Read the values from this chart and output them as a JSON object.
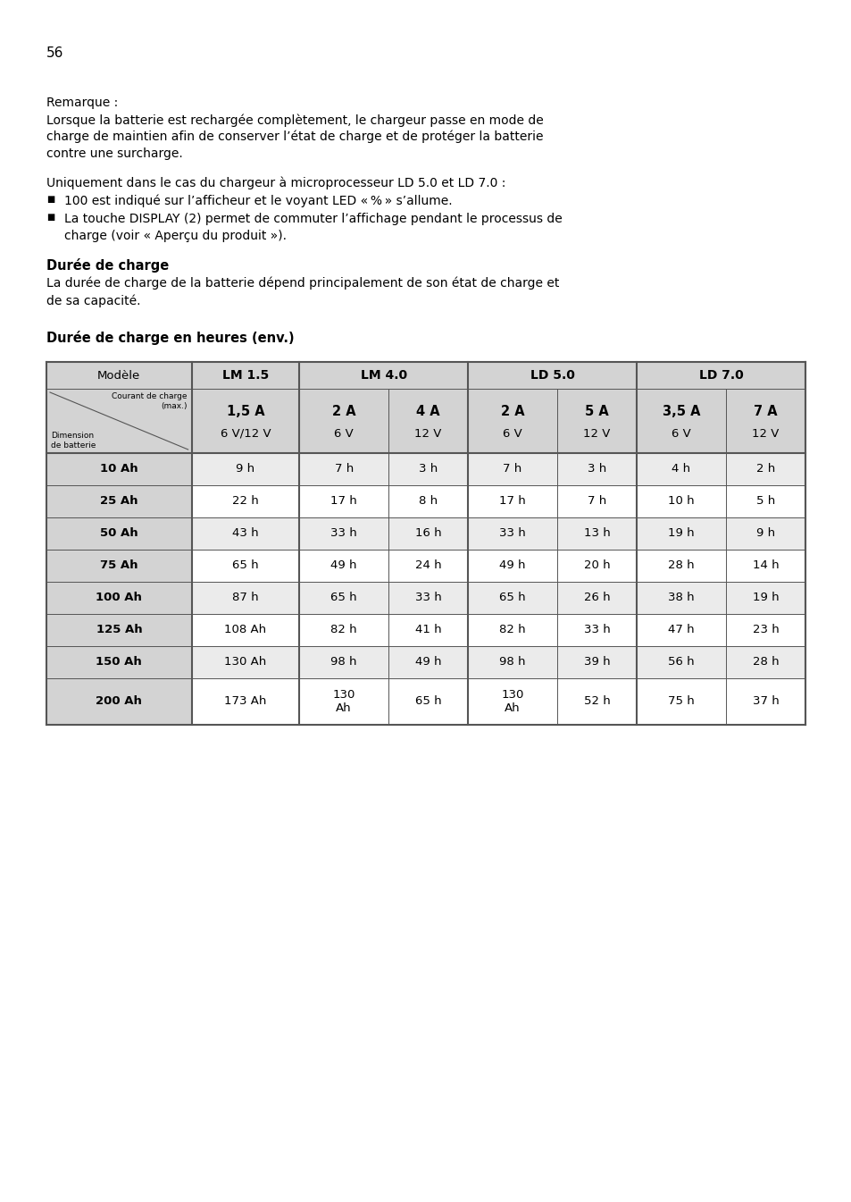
{
  "page_number": "56",
  "background_color": "#ffffff",
  "text_color": "#000000",
  "remarque_label": "Remarque :",
  "remarque_lines": [
    "Lorsque la batterie est rechargée complètement, le chargeur passe en mode de",
    "charge de maintien afin de conserver l’état de charge et de protéger la batterie",
    "contre une surcharge."
  ],
  "uniquement_text": "Uniquement dans le cas du chargeur à microprocesseur LD 5.0 et LD 7.0 :",
  "bullet1": "100 est indiqué sur l’afficheur et le voyant LED « % » s’allume.",
  "bullet2_line1": "La touche DISPLAY (2) permet de commuter l’affichage pendant le processus de",
  "bullet2_line2": "charge (voir « Aperçu du produit »).",
  "section_title": "Durée de charge",
  "section_lines": [
    "La durée de charge de la batterie dépend principalement de son état de charge et",
    "de sa capacité."
  ],
  "table_title": "Durée de charge en heures (env.)",
  "table_rows": [
    [
      "10 Ah",
      "9 h",
      "7 h",
      "3 h",
      "7 h",
      "3 h",
      "4 h",
      "2 h"
    ],
    [
      "25 Ah",
      "22 h",
      "17 h",
      "8 h",
      "17 h",
      "7 h",
      "10 h",
      "5 h"
    ],
    [
      "50 Ah",
      "43 h",
      "33 h",
      "16 h",
      "33 h",
      "13 h",
      "19 h",
      "9 h"
    ],
    [
      "75 Ah",
      "65 h",
      "49 h",
      "24 h",
      "49 h",
      "20 h",
      "28 h",
      "14 h"
    ],
    [
      "100 Ah",
      "87 h",
      "65 h",
      "33 h",
      "65 h",
      "26 h",
      "38 h",
      "19 h"
    ],
    [
      "125 Ah",
      "108 Ah",
      "82 h",
      "41 h",
      "82 h",
      "33 h",
      "47 h",
      "23 h"
    ],
    [
      "150 Ah",
      "130 Ah",
      "98 h",
      "49 h",
      "98 h",
      "39 h",
      "56 h",
      "28 h"
    ],
    [
      "200 Ah",
      "173 Ah",
      "130\nAh",
      "65 h",
      "130\nAh",
      "52 h",
      "75 h",
      "37 h"
    ]
  ],
  "header_bg": "#d3d3d3",
  "row_bg_odd": "#ebebeb",
  "row_bg_even": "#ffffff",
  "table_border_color": "#555555"
}
